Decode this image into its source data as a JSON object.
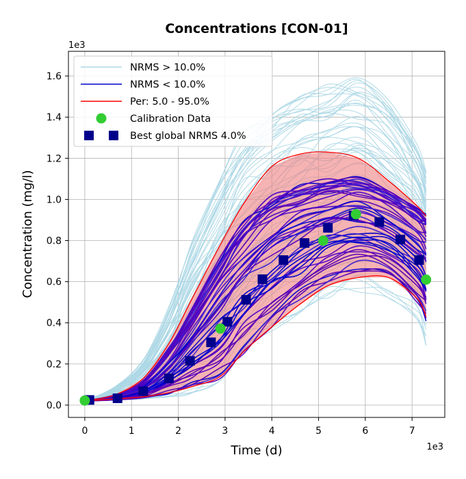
{
  "chart_data": {
    "type": "line",
    "title": "Concentrations [CON-01]",
    "xlabel": "Time (d)",
    "ylabel": "Concentration (mg/l)",
    "x_offset_label": "1e3",
    "y_offset_label": "1e3",
    "xlim": [
      -0.35,
      7.7
    ],
    "ylim": [
      -0.06,
      1.72
    ],
    "xticks": [
      0,
      1,
      2,
      3,
      4,
      5,
      6,
      7
    ],
    "yticks": [
      0.0,
      0.2,
      0.4,
      0.6,
      0.8,
      1.0,
      1.2,
      1.4,
      1.6
    ],
    "ytick_labels": [
      "0.0",
      "0.2",
      "0.4",
      "0.6",
      "0.8",
      "1.0",
      "1.2",
      "1.4",
      "1.6"
    ],
    "grid": true,
    "legend_position": "top-left",
    "legend": [
      {
        "label": "NRMS > 10.0%",
        "style": "line",
        "color": "#add8e6"
      },
      {
        "label": "NRMS < 10.0%",
        "style": "line",
        "color": "#0000cd"
      },
      {
        "label": "Per: 5.0 - 95.0%",
        "style": "line",
        "color": "#ff0000"
      },
      {
        "label": "Calibration Data",
        "style": "circle",
        "color": "#32cd32"
      },
      {
        "label": "Best global NRMS 4.0%",
        "style": "square",
        "color": "#00008b"
      }
    ],
    "percentile_band": {
      "x": [
        0,
        0.65,
        1.25,
        1.8,
        2.3,
        2.9,
        3.4,
        4.0,
        4.6,
        5.2,
        5.85,
        6.5,
        7.1,
        7.3
      ],
      "upper": [
        0.02,
        0.05,
        0.13,
        0.3,
        0.52,
        0.78,
        0.98,
        1.16,
        1.22,
        1.23,
        1.2,
        1.09,
        0.97,
        0.92
      ],
      "lower": [
        0.02,
        0.03,
        0.04,
        0.06,
        0.09,
        0.14,
        0.26,
        0.38,
        0.49,
        0.58,
        0.62,
        0.62,
        0.52,
        0.43
      ]
    },
    "series": [
      {
        "name": "Calibration Data",
        "x": [
          0.0,
          2.9,
          5.1,
          5.8,
          7.3
        ],
        "y": [
          0.022,
          0.372,
          0.8,
          0.928,
          0.61
        ]
      },
      {
        "name": "Best global NRMS 4.0%",
        "x": [
          0.1,
          0.7,
          1.25,
          1.8,
          2.25,
          2.7,
          3.05,
          3.45,
          3.8,
          4.25,
          4.7,
          5.2,
          5.75,
          6.3,
          6.75,
          7.15
        ],
        "y": [
          0.025,
          0.033,
          0.068,
          0.13,
          0.215,
          0.305,
          0.405,
          0.512,
          0.612,
          0.705,
          0.788,
          0.862,
          0.922,
          0.89,
          0.805,
          0.705
        ]
      }
    ],
    "ensemble": {
      "x": [
        0,
        0.65,
        1.25,
        1.8,
        2.3,
        2.9,
        3.4,
        4.0,
        4.6,
        5.2,
        5.85,
        6.5,
        7.1,
        7.3
      ],
      "light_count": 60,
      "light_y_low": [
        0.02,
        0.025,
        0.03,
        0.04,
        0.06,
        0.12,
        0.24,
        0.36,
        0.45,
        0.52,
        0.55,
        0.52,
        0.42,
        0.29
      ],
      "light_y_high": [
        0.02,
        0.09,
        0.22,
        0.48,
        0.8,
        1.1,
        1.33,
        1.46,
        1.52,
        1.56,
        1.62,
        1.5,
        1.28,
        1.16
      ],
      "dark_count": 45,
      "dark_y_low": [
        0.02,
        0.025,
        0.035,
        0.05,
        0.08,
        0.13,
        0.25,
        0.38,
        0.5,
        0.6,
        0.65,
        0.63,
        0.5,
        0.4
      ],
      "dark_y_high": [
        0.02,
        0.05,
        0.12,
        0.28,
        0.48,
        0.72,
        0.9,
        1.02,
        1.07,
        1.1,
        1.11,
        1.04,
        0.96,
        0.94
      ]
    }
  }
}
